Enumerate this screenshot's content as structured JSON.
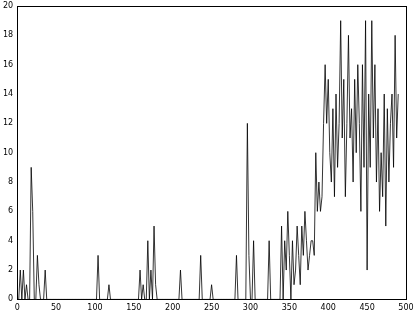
{
  "chart_data": {
    "type": "line",
    "color": "#000000",
    "grid": false,
    "xlim": [
      0,
      500
    ],
    "xticks": [
      0,
      50,
      100,
      150,
      200,
      250,
      300,
      350,
      400,
      450,
      500
    ],
    "ylim": [
      0,
      20
    ],
    "yticks": [
      0,
      2,
      4,
      6,
      8,
      10,
      12,
      14,
      16,
      18,
      20
    ],
    "x": [
      0,
      2,
      4,
      6,
      8,
      10,
      12,
      14,
      16,
      18,
      20,
      22,
      24,
      26,
      28,
      30,
      32,
      34,
      36,
      38,
      40,
      42,
      44,
      46,
      48,
      50,
      52,
      54,
      56,
      58,
      60,
      62,
      64,
      66,
      68,
      70,
      72,
      74,
      76,
      78,
      80,
      82,
      84,
      86,
      88,
      90,
      92,
      94,
      96,
      98,
      100,
      102,
      104,
      106,
      108,
      110,
      112,
      114,
      116,
      118,
      120,
      122,
      124,
      126,
      128,
      130,
      132,
      134,
      136,
      138,
      140,
      142,
      144,
      146,
      148,
      150,
      152,
      154,
      156,
      158,
      160,
      162,
      164,
      166,
      168,
      170,
      172,
      174,
      176,
      178,
      180,
      182,
      184,
      186,
      188,
      190,
      192,
      194,
      196,
      198,
      200,
      202,
      204,
      206,
      208,
      210,
      212,
      214,
      216,
      218,
      220,
      222,
      224,
      226,
      228,
      230,
      232,
      234,
      236,
      238,
      240,
      242,
      244,
      246,
      248,
      250,
      252,
      254,
      256,
      258,
      260,
      262,
      264,
      266,
      268,
      270,
      272,
      274,
      276,
      278,
      280,
      282,
      284,
      286,
      288,
      290,
      292,
      294,
      296,
      298,
      300,
      302,
      304,
      306,
      308,
      310,
      312,
      314,
      316,
      318,
      320,
      322,
      324,
      326,
      328,
      330,
      332,
      334,
      336,
      338,
      340,
      342,
      344,
      346,
      348,
      350,
      352,
      354,
      356,
      358,
      360,
      362,
      364,
      366,
      368,
      370,
      372,
      374,
      376,
      378,
      380,
      382,
      384,
      386,
      388,
      390,
      392,
      394,
      396,
      398,
      400,
      402,
      404,
      406,
      408,
      410,
      412,
      414,
      416,
      418,
      420,
      422,
      424,
      426,
      428,
      430,
      432,
      434,
      436,
      438,
      440,
      442,
      444,
      446,
      448,
      450,
      452,
      454,
      456,
      458,
      460,
      462,
      464,
      466,
      468,
      470,
      472,
      474,
      476,
      478,
      480,
      482,
      484,
      486,
      488,
      490
    ],
    "values": [
      0,
      0,
      2,
      0,
      2,
      0,
      1,
      0,
      0,
      9,
      6,
      0,
      0,
      3,
      1,
      0,
      0,
      0,
      2,
      0,
      0,
      0,
      0,
      0,
      0,
      0,
      0,
      0,
      0,
      0,
      0,
      0,
      0,
      0,
      0,
      0,
      0,
      0,
      0,
      0,
      0,
      0,
      0,
      0,
      0,
      0,
      0,
      0,
      0,
      0,
      0,
      0,
      3,
      0,
      0,
      0,
      0,
      0,
      0,
      1,
      0,
      0,
      0,
      0,
      0,
      0,
      0,
      0,
      0,
      0,
      0,
      0,
      0,
      0,
      0,
      0,
      0,
      0,
      0,
      2,
      0,
      1,
      0,
      0,
      4,
      0,
      2,
      0,
      5,
      1,
      0,
      0,
      0,
      0,
      0,
      0,
      0,
      0,
      0,
      0,
      0,
      0,
      0,
      0,
      0,
      2,
      0,
      0,
      0,
      0,
      0,
      0,
      0,
      0,
      0,
      0,
      0,
      0,
      3,
      0,
      0,
      0,
      0,
      0,
      0,
      1,
      0,
      0,
      0,
      0,
      0,
      0,
      0,
      0,
      0,
      0,
      0,
      0,
      0,
      0,
      0,
      3,
      0,
      0,
      0,
      0,
      0,
      0,
      12,
      3,
      0,
      0,
      4,
      0,
      0,
      0,
      0,
      0,
      0,
      0,
      0,
      0,
      4,
      0,
      0,
      0,
      0,
      0,
      0,
      0,
      5,
      0,
      4,
      2,
      6,
      3,
      0,
      4,
      1,
      2,
      5,
      3,
      1,
      5,
      3,
      6,
      4,
      2,
      3,
      4,
      4,
      3,
      10,
      6,
      8,
      6,
      7,
      12,
      16,
      12,
      15,
      10,
      8,
      13,
      7,
      14,
      9,
      12,
      19,
      11,
      15,
      7,
      12,
      18,
      11,
      13,
      8,
      15,
      10,
      16,
      12,
      6,
      16,
      9,
      19,
      2,
      14,
      9,
      19,
      11,
      16,
      8,
      13,
      6,
      10,
      7,
      14,
      5,
      13,
      8,
      12,
      14,
      9,
      18,
      11,
      14
    ]
  }
}
